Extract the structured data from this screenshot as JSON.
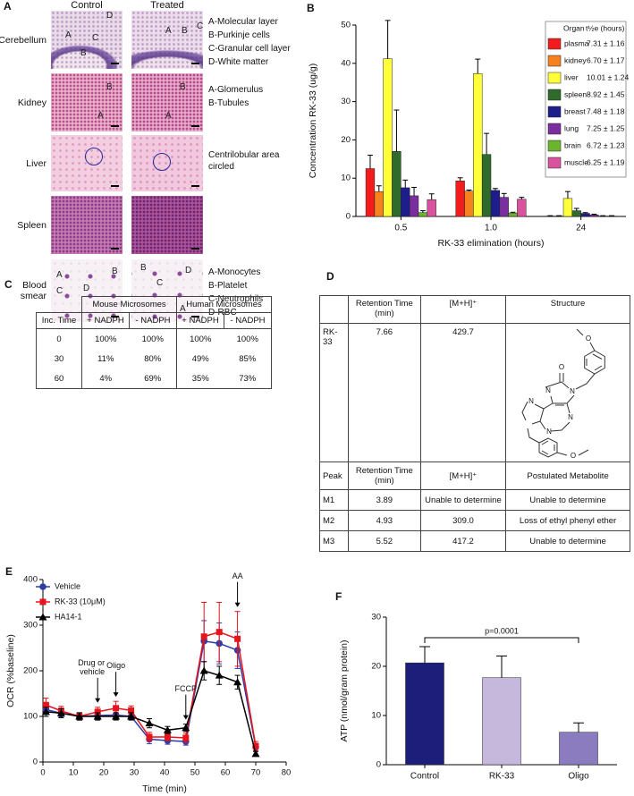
{
  "panel_a": {
    "label": "A",
    "columns": [
      "Control",
      "Treated"
    ],
    "rows": [
      {
        "name": "Cerebellum",
        "control_marks": [
          "A",
          "C",
          "B",
          "D"
        ],
        "treated_marks": [
          "A",
          "B",
          "C"
        ],
        "notes": [
          "A-Molecular layer",
          "B-Purkinje cells",
          "C-Granular cell layer",
          "D-White matter"
        ]
      },
      {
        "name": "Kidney",
        "control_marks": [
          "B",
          "A"
        ],
        "treated_marks": [
          "B",
          "A"
        ],
        "notes": [
          "A-Glomerulus",
          "B-Tubules"
        ]
      },
      {
        "name": "Liver",
        "notes": [
          "Centrilobular area circled"
        ]
      },
      {
        "name": "Spleen"
      },
      {
        "name": "Blood smear",
        "control_marks": [
          "A",
          "C",
          "B",
          "D"
        ],
        "treated_marks": [
          "B",
          "C",
          "D",
          "A"
        ],
        "notes": [
          "A-Monocytes",
          "B-Platelet",
          "C-Neutrophils",
          "D-RBC"
        ]
      }
    ]
  },
  "chart_data": [
    {
      "panel": "B",
      "type": "bar",
      "ylabel": "Concentration RK-33 (ug/g)",
      "xlabel": "RK-33 elimination (hours)",
      "categories": [
        "0.5",
        "1.0",
        "24"
      ],
      "ylim": [
        0,
        50
      ],
      "yticks": [
        0,
        10,
        20,
        30,
        40,
        50
      ],
      "legend_title": "Organ",
      "legend_value_title": "t½e (hours)",
      "series": [
        {
          "name": "plasma",
          "color": "#f21c1c",
          "halflife": "7.31 ± 1.16",
          "values": [
            12.5,
            9.3,
            0.1
          ],
          "errors": [
            3.5,
            0.8,
            0.1
          ]
        },
        {
          "name": "kidney",
          "color": "#f5821f",
          "halflife": "6.70 ± 1.17",
          "values": [
            6.5,
            6.6,
            0.1
          ],
          "errors": [
            1.5,
            0.3,
            0.1
          ]
        },
        {
          "name": "liver",
          "color": "#ffff3a",
          "halflife": "10.01 ± 1.24",
          "values": [
            41.2,
            37.3,
            4.7
          ],
          "errors": [
            10,
            3.8,
            1.8
          ]
        },
        {
          "name": "spleen",
          "color": "#2f6b2b",
          "halflife": "8.92 ± 1.45",
          "values": [
            17,
            16.2,
            1.5
          ],
          "errors": [
            10.8,
            5.5,
            0.6
          ]
        },
        {
          "name": "breast",
          "color": "#1d1d8c",
          "halflife": "7.48 ± 1.18",
          "values": [
            7.5,
            6.8,
            0.8
          ],
          "errors": [
            2,
            0.5,
            0.2
          ]
        },
        {
          "name": "lung",
          "color": "#7b2f9e",
          "halflife": "7.25 ± 1.25",
          "values": [
            5.4,
            5,
            0.4
          ],
          "errors": [
            2.2,
            1,
            0.2
          ]
        },
        {
          "name": "brain",
          "color": "#6bb42e",
          "halflife": "6.72 ± 1.23",
          "values": [
            1,
            0.9,
            0.1
          ],
          "errors": [
            0.5,
            0.2,
            0.1
          ]
        },
        {
          "name": "muscle",
          "color": "#d9529e",
          "halflife": "6.25 ± 1.19",
          "values": [
            4.4,
            4.5,
            0.1
          ],
          "errors": [
            1.5,
            0.5,
            0.1
          ]
        }
      ]
    },
    {
      "panel": "E",
      "type": "line",
      "xlabel": "Time (min)",
      "ylabel": "OCR (%baseline)",
      "x": [
        1,
        6,
        12,
        18,
        24,
        29,
        35,
        41,
        47,
        53,
        58,
        64,
        70
      ],
      "xlim": [
        0,
        80
      ],
      "xticks": [
        0,
        10,
        20,
        30,
        40,
        50,
        60,
        70,
        80
      ],
      "ylim": [
        0,
        400
      ],
      "yticks": [
        0,
        100,
        200,
        300,
        400
      ],
      "legend": "upper left",
      "series": [
        {
          "name": "Vehicle",
          "color": "#2e3da8",
          "marker": "circle",
          "values": [
            115,
            107,
            100,
            102,
            103,
            100,
            50,
            47,
            45,
            265,
            260,
            245,
            33
          ],
          "errors": [
            10,
            8,
            8,
            10,
            10,
            8,
            10,
            8,
            8,
            45,
            45,
            40,
            8
          ]
        },
        {
          "name": "RK-33 (10μM)",
          "color": "#e8141c",
          "marker": "square",
          "values": [
            125,
            112,
            100,
            110,
            118,
            113,
            55,
            55,
            53,
            275,
            285,
            270,
            35
          ],
          "errors": [
            15,
            10,
            8,
            10,
            15,
            10,
            10,
            8,
            10,
            75,
            65,
            60,
            10
          ]
        },
        {
          "name": "HA14-1",
          "color": "#000000",
          "marker": "triangle",
          "values": [
            110,
            107,
            100,
            100,
            100,
            100,
            85,
            70,
            75,
            200,
            190,
            175,
            18
          ],
          "errors": [
            10,
            10,
            8,
            8,
            8,
            8,
            10,
            8,
            8,
            20,
            20,
            15,
            5
          ]
        }
      ],
      "annotations": [
        {
          "text": "Drug or vehicle",
          "x": 18
        },
        {
          "text": "Oligo",
          "x": 24
        },
        {
          "text": "FCCP",
          "x": 47
        },
        {
          "text": "AA",
          "x": 64
        }
      ]
    },
    {
      "panel": "F",
      "type": "bar",
      "ylabel": "ATP (nmol/gram protein)",
      "categories": [
        "Control",
        "RK-33",
        "Oligo"
      ],
      "values": [
        20.7,
        17.7,
        6.6
      ],
      "errors": [
        3.3,
        4.4,
        1.9
      ],
      "colors": [
        "#1d1d7a",
        "#c5b8dc",
        "#8b7bbf"
      ],
      "ylim": [
        0,
        30
      ],
      "yticks": [
        0,
        10,
        20,
        30
      ],
      "annotation": "p=0.0001"
    }
  ],
  "panel_c": {
    "label": "C",
    "header_groups": [
      "Mouse Microsomes",
      "Human Microsomes"
    ],
    "header": [
      "Inc. Time",
      "+ NADPH",
      "- NADPH",
      "+ NADPH",
      "- NADPH"
    ],
    "rows": [
      [
        "0",
        "100%",
        "100%",
        "100%",
        "100%"
      ],
      [
        "30",
        "11%",
        "80%",
        "49%",
        "85%"
      ],
      [
        "60",
        "4%",
        "69%",
        "35%",
        "73%"
      ]
    ]
  },
  "panel_d": {
    "label": "D",
    "header": [
      "Retention Time (min)",
      "[M+H]⁺",
      "Structure"
    ],
    "compound": [
      "RK-33",
      "7.66",
      "429.7"
    ],
    "metabolite_header": [
      "Peak",
      "Retention Time (min)",
      "[M+H]⁺",
      "Postulated Metabolite"
    ],
    "rows": [
      [
        "M1",
        "3.89",
        "Unable to determine",
        "Unable to determine"
      ],
      [
        "M2",
        "4.93",
        "309.0",
        "Loss of ethyl phenyl ether"
      ],
      [
        "M3",
        "5.52",
        "417.2",
        "Unable to determine"
      ]
    ],
    "structure_atoms": [
      "O",
      "N",
      "N",
      "N",
      "N",
      "N",
      "O",
      "O"
    ]
  }
}
